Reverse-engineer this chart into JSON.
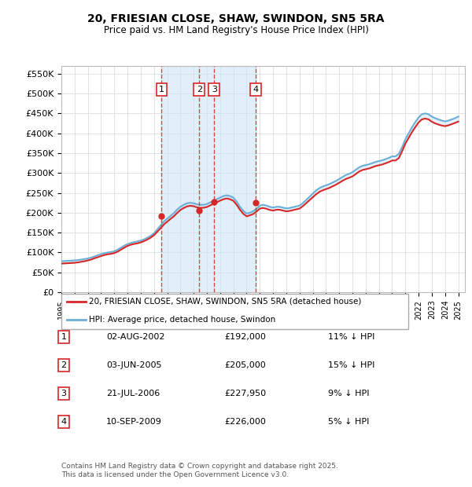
{
  "title": "20, FRIESIAN CLOSE, SHAW, SWINDON, SN5 5RA",
  "subtitle": "Price paid vs. HM Land Registry's House Price Index (HPI)",
  "ylabel_ticks": [
    "£0",
    "£50K",
    "£100K",
    "£150K",
    "£200K",
    "£250K",
    "£300K",
    "£350K",
    "£400K",
    "£450K",
    "£500K",
    "£550K"
  ],
  "ytick_values": [
    0,
    50000,
    100000,
    150000,
    200000,
    250000,
    300000,
    350000,
    400000,
    450000,
    500000,
    550000
  ],
  "ylim": [
    0,
    570000
  ],
  "xlim_start": 1995.0,
  "xlim_end": 2025.5,
  "transactions": [
    {
      "label": "1",
      "date": "02-AUG-2002",
      "year": 2002.58,
      "price": 192000,
      "pct": "11%",
      "dir": "↓"
    },
    {
      "label": "2",
      "date": "03-JUN-2005",
      "year": 2005.42,
      "price": 205000,
      "pct": "15%",
      "dir": "↓"
    },
    {
      "label": "3",
      "date": "21-JUL-2006",
      "year": 2006.55,
      "price": 227950,
      "pct": "9%",
      "dir": "↓"
    },
    {
      "label": "4",
      "date": "10-SEP-2009",
      "year": 2009.7,
      "price": 226000,
      "pct": "5%",
      "dir": "↓"
    }
  ],
  "hpi_color": "#6baed6",
  "price_color": "#d62728",
  "shade_color": "#cce5f5",
  "grid_color": "#dddddd",
  "legend_label_price": "20, FRIESIAN CLOSE, SHAW, SWINDON, SN5 5RA (detached house)",
  "legend_label_hpi": "HPI: Average price, detached house, Swindon",
  "footer": "Contains HM Land Registry data © Crown copyright and database right 2025.\nThis data is licensed under the Open Government Licence v3.0.",
  "shared_years": [
    1995.0,
    1995.25,
    1995.5,
    1995.75,
    1996.0,
    1996.25,
    1996.5,
    1996.75,
    1997.0,
    1997.25,
    1997.5,
    1997.75,
    1998.0,
    1998.25,
    1998.5,
    1998.75,
    1999.0,
    1999.25,
    1999.5,
    1999.75,
    2000.0,
    2000.25,
    2000.5,
    2000.75,
    2001.0,
    2001.25,
    2001.5,
    2001.75,
    2002.0,
    2002.25,
    2002.5,
    2002.75,
    2003.0,
    2003.25,
    2003.5,
    2003.75,
    2004.0,
    2004.25,
    2004.5,
    2004.75,
    2005.0,
    2005.25,
    2005.5,
    2005.75,
    2006.0,
    2006.25,
    2006.5,
    2006.75,
    2007.0,
    2007.25,
    2007.5,
    2007.75,
    2008.0,
    2008.25,
    2008.5,
    2008.75,
    2009.0,
    2009.25,
    2009.5,
    2009.75,
    2010.0,
    2010.25,
    2010.5,
    2010.75,
    2011.0,
    2011.25,
    2011.5,
    2011.75,
    2012.0,
    2012.25,
    2012.5,
    2012.75,
    2013.0,
    2013.25,
    2013.5,
    2013.75,
    2014.0,
    2014.25,
    2014.5,
    2014.75,
    2015.0,
    2015.25,
    2015.5,
    2015.75,
    2016.0,
    2016.25,
    2016.5,
    2016.75,
    2017.0,
    2017.25,
    2017.5,
    2017.75,
    2018.0,
    2018.25,
    2018.5,
    2018.75,
    2019.0,
    2019.25,
    2019.5,
    2019.75,
    2020.0,
    2020.25,
    2020.5,
    2020.75,
    2021.0,
    2021.25,
    2021.5,
    2021.75,
    2022.0,
    2022.25,
    2022.5,
    2022.75,
    2023.0,
    2023.25,
    2023.5,
    2023.75,
    2024.0,
    2024.25,
    2024.5,
    2024.75,
    2025.0
  ],
  "hpi_vals": [
    78000,
    78500,
    79000,
    79500,
    80000,
    81000,
    82000,
    83500,
    85000,
    87000,
    90000,
    93000,
    96000,
    98000,
    100000,
    101000,
    103000,
    107000,
    112000,
    117000,
    121000,
    124000,
    126000,
    128000,
    130000,
    133000,
    137000,
    142000,
    148000,
    158000,
    168000,
    178000,
    185000,
    192000,
    199000,
    208000,
    215000,
    220000,
    224000,
    225000,
    224000,
    221000,
    220000,
    220000,
    222000,
    226000,
    230000,
    234000,
    238000,
    242000,
    244000,
    242000,
    238000,
    228000,
    215000,
    205000,
    198000,
    200000,
    204000,
    210000,
    218000,
    220000,
    218000,
    215000,
    213000,
    215000,
    215000,
    213000,
    211000,
    212000,
    214000,
    216000,
    218000,
    224000,
    232000,
    240000,
    248000,
    256000,
    262000,
    266000,
    269000,
    272000,
    276000,
    280000,
    285000,
    290000,
    295000,
    298000,
    302000,
    308000,
    314000,
    318000,
    320000,
    322000,
    325000,
    328000,
    330000,
    332000,
    335000,
    338000,
    342000,
    342000,
    348000,
    365000,
    385000,
    400000,
    415000,
    428000,
    440000,
    448000,
    450000,
    448000,
    442000,
    438000,
    435000,
    432000,
    430000,
    432000,
    435000,
    438000,
    442000
  ],
  "price_vals": [
    72000,
    72500,
    73000,
    73500,
    74000,
    75000,
    76500,
    78000,
    80000,
    82000,
    85500,
    88000,
    91000,
    93500,
    95500,
    96500,
    98500,
    102000,
    107000,
    112000,
    116500,
    119500,
    121500,
    123000,
    125500,
    128500,
    132500,
    137500,
    143500,
    152000,
    161000,
    170500,
    177500,
    184500,
    191000,
    199500,
    207000,
    212000,
    216000,
    217500,
    216500,
    213500,
    212500,
    212500,
    214500,
    218500,
    222500,
    226500,
    230500,
    234000,
    236000,
    234000,
    230000,
    220000,
    207500,
    197500,
    191000,
    193500,
    197000,
    203000,
    210500,
    212000,
    210000,
    207000,
    205500,
    207500,
    207500,
    205500,
    203500,
    204500,
    206500,
    208500,
    210500,
    216500,
    224000,
    231500,
    239000,
    246500,
    252500,
    256500,
    259500,
    262500,
    266500,
    270500,
    275500,
    280500,
    285000,
    288000,
    291500,
    297500,
    303500,
    307500,
    309500,
    311500,
    314500,
    317500,
    319500,
    321500,
    324500,
    327500,
    331500,
    331500,
    337500,
    354500,
    374000,
    388500,
    403000,
    415500,
    427500,
    435000,
    437000,
    435000,
    429000,
    425000,
    422000,
    419500,
    418000,
    420000,
    423000,
    426000,
    429500
  ]
}
